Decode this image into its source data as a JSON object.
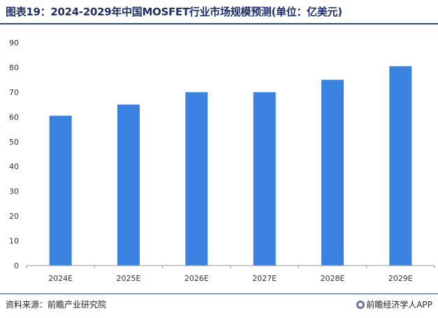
{
  "chart_data": {
    "type": "bar",
    "title": "图表19：2024-2029年中国MOSFET行业市场规模预测(单位：亿美元)",
    "categories": [
      "2024E",
      "2025E",
      "2026E",
      "2027E",
      "2028E",
      "2029E"
    ],
    "values": [
      60.5,
      65,
      70,
      70,
      75,
      80.5
    ],
    "yticks": [
      0,
      10,
      20,
      30,
      40,
      50,
      60,
      70,
      80,
      90
    ],
    "ylim": [
      0,
      90
    ],
    "xlabel": "",
    "ylabel": "",
    "grid": false,
    "legend": "none",
    "bar_color": "#3b82e0"
  },
  "footer": {
    "source": "资料来源：前瞻产业研究院",
    "credit": "前瞻经济学人APP",
    "credit_icon": "qianzhan-logo-icon"
  }
}
